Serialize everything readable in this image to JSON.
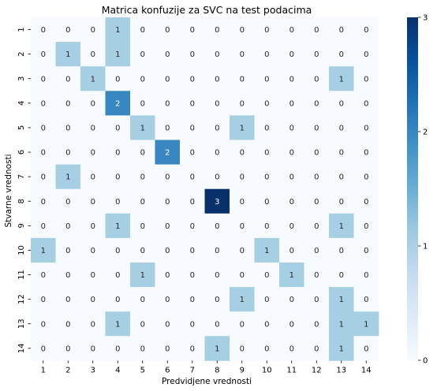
{
  "chart_data": {
    "type": "heatmap",
    "title": "Matrica konfuzije za SVC na test podacima",
    "xlabel": "Predvidjene vrednosti",
    "ylabel": "Stvarne vrednosti",
    "x_categories": [
      "1",
      "2",
      "3",
      "4",
      "5",
      "6",
      "7",
      "8",
      "9",
      "10",
      "11",
      "12",
      "13",
      "14"
    ],
    "y_categories": [
      "1",
      "2",
      "3",
      "4",
      "5",
      "6",
      "7",
      "8",
      "9",
      "10",
      "11",
      "12",
      "13",
      "14"
    ],
    "values": [
      [
        0,
        0,
        0,
        1,
        0,
        0,
        0,
        0,
        0,
        0,
        0,
        0,
        0,
        0
      ],
      [
        0,
        1,
        0,
        1,
        0,
        0,
        0,
        0,
        0,
        0,
        0,
        0,
        0,
        0
      ],
      [
        0,
        0,
        1,
        0,
        0,
        0,
        0,
        0,
        0,
        0,
        0,
        0,
        1,
        0
      ],
      [
        0,
        0,
        0,
        2,
        0,
        0,
        0,
        0,
        0,
        0,
        0,
        0,
        0,
        0
      ],
      [
        0,
        0,
        0,
        0,
        1,
        0,
        0,
        0,
        1,
        0,
        0,
        0,
        0,
        0
      ],
      [
        0,
        0,
        0,
        0,
        0,
        2,
        0,
        0,
        0,
        0,
        0,
        0,
        0,
        0
      ],
      [
        0,
        1,
        0,
        0,
        0,
        0,
        0,
        0,
        0,
        0,
        0,
        0,
        0,
        0
      ],
      [
        0,
        0,
        0,
        0,
        0,
        0,
        0,
        3,
        0,
        0,
        0,
        0,
        0,
        0
      ],
      [
        0,
        0,
        0,
        1,
        0,
        0,
        0,
        0,
        0,
        0,
        0,
        0,
        1,
        0
      ],
      [
        1,
        0,
        0,
        0,
        0,
        0,
        0,
        0,
        0,
        1,
        0,
        0,
        0,
        0
      ],
      [
        0,
        0,
        0,
        0,
        1,
        0,
        0,
        0,
        0,
        0,
        1,
        0,
        0,
        0
      ],
      [
        0,
        0,
        0,
        0,
        0,
        0,
        0,
        0,
        1,
        0,
        0,
        0,
        1,
        0
      ],
      [
        0,
        0,
        0,
        1,
        0,
        0,
        0,
        0,
        0,
        0,
        0,
        0,
        1,
        1
      ],
      [
        0,
        0,
        0,
        0,
        0,
        0,
        0,
        1,
        0,
        0,
        0,
        0,
        1,
        0
      ]
    ],
    "colorbar": {
      "min": 0,
      "max": 3,
      "ticks": [
        0,
        1,
        2,
        3
      ]
    },
    "colors": {
      "zero": "#f7fbff",
      "one": "#a7cfe4",
      "two": "#3887c0",
      "three": "#08306b"
    }
  }
}
